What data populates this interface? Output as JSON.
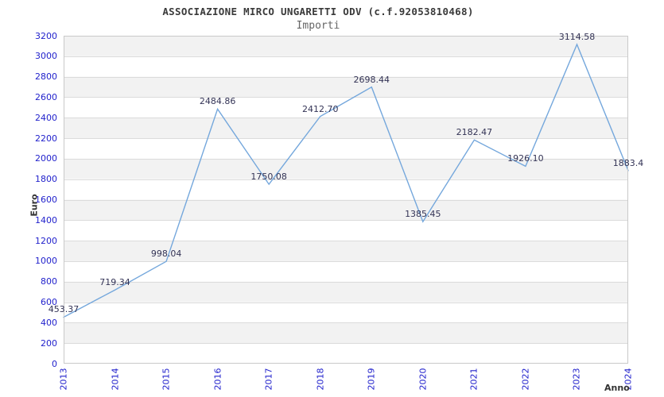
{
  "title": "ASSOCIAZIONE MIRCO UNGARETTI ODV (c.f.92053810468)",
  "subtitle": "Importi",
  "chart_data": {
    "type": "line",
    "x": [
      2013,
      2014,
      2015,
      2016,
      2017,
      2018,
      2019,
      2020,
      2021,
      2022,
      2023,
      2024
    ],
    "series": [
      {
        "name": "Importi",
        "values": [
          453.37,
          719.34,
          998.04,
          2484.86,
          1750.08,
          2412.7,
          2698.44,
          1385.45,
          2182.47,
          1926.1,
          3114.58,
          1883.4
        ]
      }
    ],
    "point_labels": [
      "453.37",
      "719.34",
      "998.04",
      "2484.86",
      "1750.08",
      "2412.70",
      "2698.44",
      "1385.45",
      "2182.47",
      "1926.10",
      "3114.58",
      "1883.4"
    ],
    "xlabel": "Anno",
    "ylabel": "Euro",
    "ylim": [
      0,
      3200
    ],
    "ytick_step": 200,
    "yticks": [
      0,
      200,
      400,
      600,
      800,
      1000,
      1200,
      1400,
      1600,
      1800,
      2000,
      2200,
      2400,
      2600,
      2800,
      3000,
      3200
    ],
    "grid": true,
    "legend": "none",
    "colors": {
      "line": "#74a7dc",
      "point_label": "#333355",
      "tick_label": "#2222cc",
      "axis_label": "#333333",
      "band_gray": "#f2f2f2",
      "band_white": "#ffffff",
      "gridline": "#dbdbdb",
      "plot_border": "#c9c9c9",
      "title": "#3a3a3a",
      "subtitle": "#666666"
    }
  }
}
